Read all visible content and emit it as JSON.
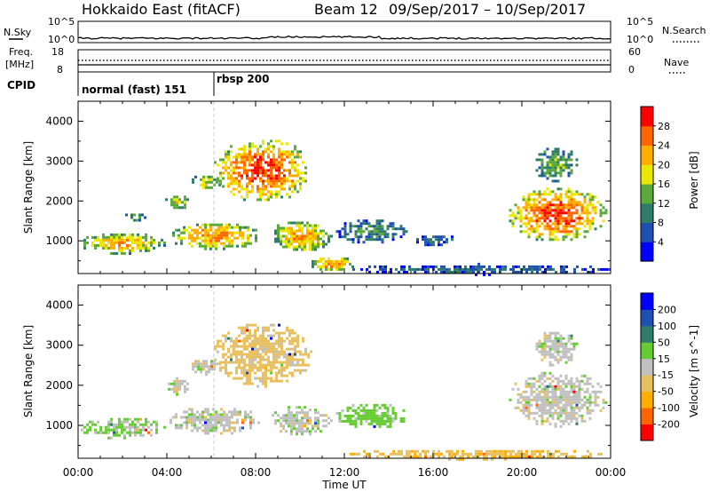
{
  "header": {
    "radar": "Hokkaido East (fitACF)",
    "beam": "Beam 12",
    "date_range": "09/Sep/2017 – 10/Sep/2017"
  },
  "strip_labels": {
    "nsky": "N.Sky",
    "nsearch": "N.Search",
    "freq_line1": "Freq.",
    "freq_line2": "[MHz]",
    "nave": "Nave",
    "cpid": "CPID",
    "nsky_top_tick": "10^5",
    "nsky_bottom_tick": "10^0",
    "freq_top_tick": "18",
    "freq_bottom_tick": "8",
    "nave_top_tick": "60",
    "nave_bottom_tick": "0"
  },
  "cpid_segments": [
    {
      "label": "normal (fast) 151",
      "start_hour": 0
    },
    {
      "label": "rbsp 200",
      "start_hour": 6
    }
  ],
  "chart_data": [
    {
      "type": "heatmap",
      "title": "",
      "xlabel": "Time UT",
      "ylabel": "Slant Range [km]",
      "x_range_hours": [
        0,
        24
      ],
      "x_tick_labels": [
        "00:00",
        "04:00",
        "08:00",
        "12:00",
        "16:00",
        "20:00",
        "00:00"
      ],
      "ylim": [
        180,
        4500
      ],
      "y_ticks": [
        1000,
        2000,
        3000,
        4000
      ],
      "colorbar": {
        "label": "Power [dB]",
        "ticks": [
          4,
          8,
          12,
          16,
          20,
          24,
          28
        ],
        "range": [
          0,
          32
        ],
        "colors": [
          "#0000ff",
          "#1f4fb0",
          "#2e7d6a",
          "#5ca83a",
          "#e8e800",
          "#ffae00",
          "#ff6600",
          "#ff0000"
        ]
      },
      "echo_regions": [
        {
          "t0": 0.0,
          "t1": 3.9,
          "r0": 700,
          "r1": 1250,
          "level": 22
        },
        {
          "t0": 2.0,
          "t1": 3.0,
          "r0": 1500,
          "r1": 1750,
          "level": 14
        },
        {
          "t0": 3.8,
          "t1": 5.0,
          "r0": 1800,
          "r1": 2200,
          "level": 18
        },
        {
          "t0": 4.0,
          "t1": 8.2,
          "r0": 800,
          "r1": 1500,
          "level": 24
        },
        {
          "t0": 5.0,
          "t1": 6.4,
          "r0": 2300,
          "r1": 2700,
          "level": 18
        },
        {
          "t0": 6.0,
          "t1": 10.5,
          "r0": 2000,
          "r1": 3600,
          "level": 28
        },
        {
          "t0": 8.6,
          "t1": 11.4,
          "r0": 750,
          "r1": 1550,
          "level": 22
        },
        {
          "t0": 10.4,
          "t1": 12.4,
          "r0": 250,
          "r1": 650,
          "level": 24
        },
        {
          "t0": 11.5,
          "t1": 14.8,
          "r0": 950,
          "r1": 1600,
          "level": 11
        },
        {
          "t0": 15.0,
          "t1": 17.0,
          "r0": 900,
          "r1": 1200,
          "level": 9
        },
        {
          "t0": 19.3,
          "t1": 23.8,
          "r0": 1000,
          "r1": 2400,
          "level": 28
        },
        {
          "t0": 20.5,
          "t1": 22.5,
          "r0": 2500,
          "r1": 3400,
          "level": 14
        },
        {
          "t0": 12.0,
          "t1": 24.0,
          "r0": 180,
          "r1": 450,
          "level": 8
        }
      ]
    },
    {
      "type": "heatmap",
      "title": "",
      "xlabel": "Time UT",
      "ylabel": "Slant Range [km]",
      "x_range_hours": [
        0,
        24
      ],
      "x_tick_labels": [
        "00:00",
        "04:00",
        "08:00",
        "12:00",
        "16:00",
        "20:00",
        "00:00"
      ],
      "ylim": [
        180,
        4500
      ],
      "y_ticks": [
        1000,
        2000,
        3000,
        4000
      ],
      "colorbar": {
        "label": "Velocity [m s^-1]",
        "ticks": [
          "-200",
          "-100",
          "-50",
          "-15",
          "15",
          "50",
          "100",
          "200"
        ],
        "colors": [
          "#ff0000",
          "#ff6600",
          "#ffae00",
          "#e8c060",
          "#c0c0c0",
          "#66cc33",
          "#2e7d6a",
          "#1f4fb0",
          "#0000ff"
        ]
      },
      "echo_regions": [
        {
          "t0": 0.0,
          "t1": 3.9,
          "r0": 700,
          "r1": 1250,
          "level": 15
        },
        {
          "t0": 3.8,
          "t1": 5.0,
          "r0": 1800,
          "r1": 2200,
          "level": 0
        },
        {
          "t0": 4.0,
          "t1": 8.2,
          "r0": 800,
          "r1": 1500,
          "level": 0
        },
        {
          "t0": 5.0,
          "t1": 6.4,
          "r0": 2300,
          "r1": 2700,
          "level": 0
        },
        {
          "t0": 6.0,
          "t1": 10.5,
          "r0": 2000,
          "r1": 3600,
          "level": -30
        },
        {
          "t0": 8.6,
          "t1": 11.4,
          "r0": 750,
          "r1": 1550,
          "level": 0
        },
        {
          "t0": 11.5,
          "t1": 14.8,
          "r0": 950,
          "r1": 1600,
          "level": 30
        },
        {
          "t0": 19.3,
          "t1": 23.8,
          "r0": 1000,
          "r1": 2400,
          "level": 0
        },
        {
          "t0": 20.5,
          "t1": 22.5,
          "r0": 2500,
          "r1": 3400,
          "level": 0
        },
        {
          "t0": 12.0,
          "t1": 24.0,
          "r0": 180,
          "r1": 450,
          "level": -40
        }
      ]
    }
  ]
}
